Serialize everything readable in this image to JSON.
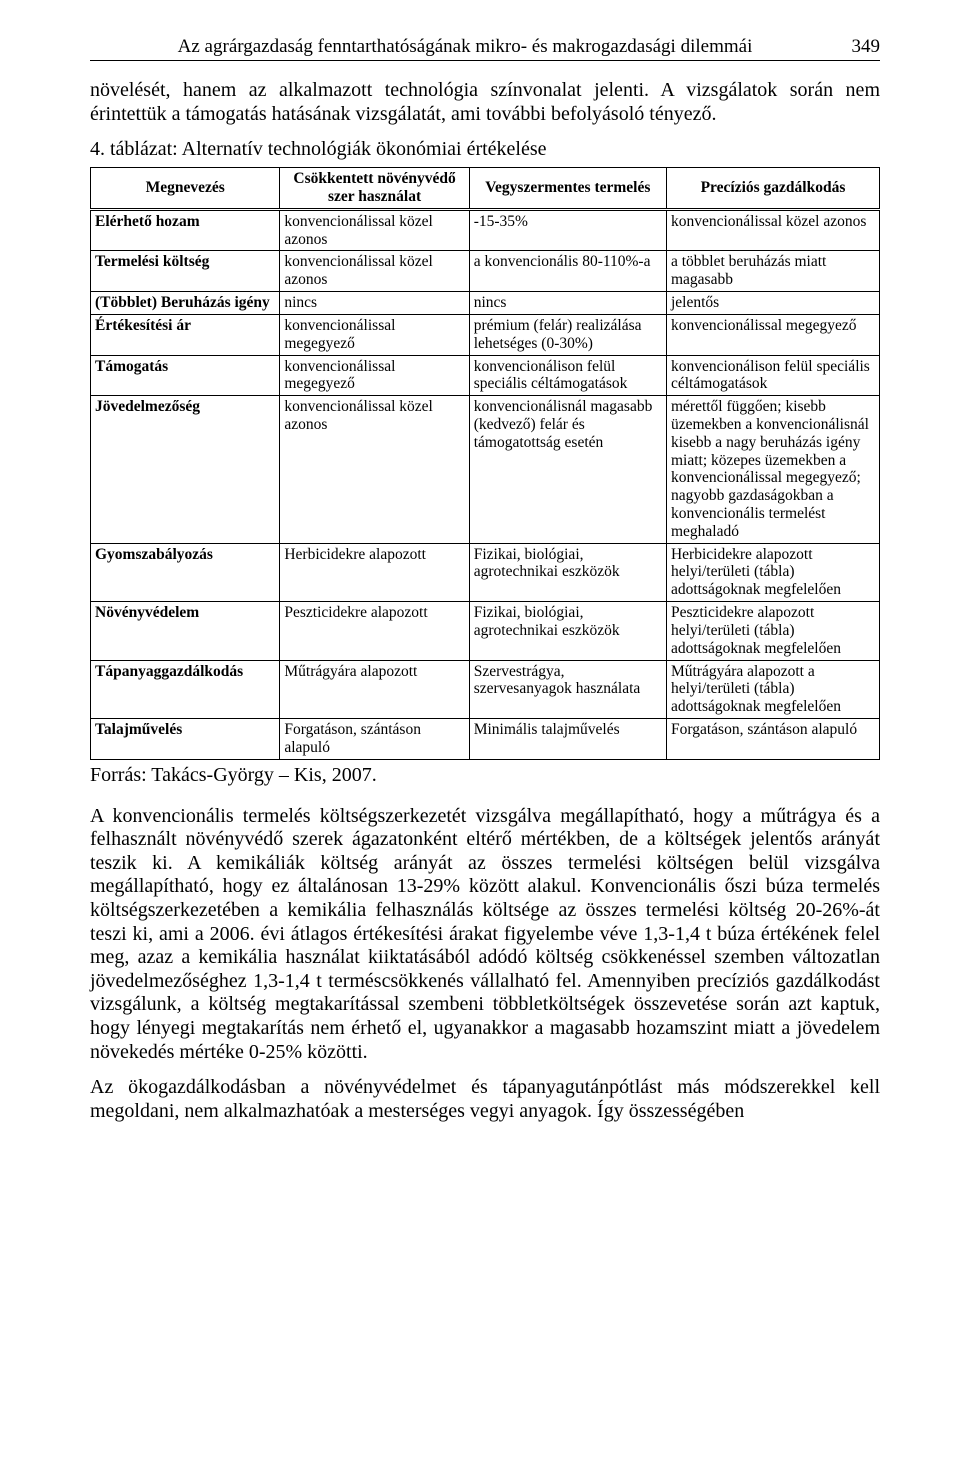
{
  "header": {
    "title": "Az agrárgazdaság fenntarthatóságának mikro- és makrogazdasági dilemmái",
    "page_number": "349"
  },
  "paragraphs": {
    "p1": "növelését, hanem az alkalmazott technológia színvonalat jelenti. A vizsgálatok során nem érintettük a támogatás hatásának vizsgálatát, ami további befolyásoló tényező.",
    "table_caption": "4. táblázat: Alternatív technológiák ökonómiai értékelése",
    "source": "Forrás: Takács-György – Kis, 2007.",
    "p2": "A konvencionális termelés költségszerkezetét vizsgálva megállapítható, hogy a műtrágya és a felhasznált növényvédő szerek ágazatonként eltérő mértékben, de a költségek jelentős arányát teszik ki. A kemikáliák költség arányát az összes termelési költségen belül vizsgálva megállapítható, hogy ez általánosan 13-29% között alakul. Konvencionális őszi búza termelés költségszerkezetében a kemikália felhasználás költsége az összes termelési költség 20-26%-át teszi ki, ami a 2006. évi átlagos értékesítési árakat figyelembe véve 1,3-1,4 t búza értékének felel meg, azaz a kemikália használat kiiktatásából adódó költség csökkenéssel szemben változatlan jövedelmezőséghez 1,3-1,4 t terméscsökkenés vállalható fel. Amennyiben precíziós gazdálkodást vizsgálunk, a költség megtakarítással szembeni többletköltségek összevetése során azt kaptuk, hogy lényegi megtakarítás nem érhető el, ugyanakkor a magasabb hozamszint miatt a jövedelem növekedés mértéke 0-25% közötti.",
    "p3": "Az ökogazdálkodásban a növényvédelmet és tápanyagutánpótlást más módszerekkel kell megoldani, nem alkalmazhatóak a mesterséges vegyi anyagok. Így összességében"
  },
  "table": {
    "headers": [
      "Megnevezés",
      "Csökkentett növényvédő szer használat",
      "Vegyszermentes termelés",
      "Precíziós gazdálkodás"
    ],
    "rows": [
      {
        "c0": "Elérhető hozam",
        "c1": "konvencionálissal közel azonos",
        "c2": "-15-35%",
        "c3": "konvencionálissal közel azonos"
      },
      {
        "c0": "Termelési költség",
        "c1": "konvencionálissal közel azonos",
        "c2": "a konvencionális 80-110%-a",
        "c3": "a többlet beruházás miatt magasabb"
      },
      {
        "c0": "(Többlet) Beruházás igény",
        "c1": "nincs",
        "c2": "nincs",
        "c3": "jelentős"
      },
      {
        "c0": "Értékesítési ár",
        "c1": "konvencionálissal megegyező",
        "c2": "prémium (felár) realizálása lehetséges (0-30%)",
        "c3": "konvencionálissal megegyező"
      },
      {
        "c0": "Támogatás",
        "c1": "konvencionálissal megegyező",
        "c2": "konvencionálison felül speciális céltámogatások",
        "c3": "konvencionálison felül speciális céltámogatások"
      },
      {
        "c0": "Jövedelmezőség",
        "c1": "konvencionálissal közel azonos",
        "c2": "konvencionálisnál magasabb (kedvező) felár és támogatottság esetén",
        "c3": "mérettől függően; kisebb üzemekben a konvencionálisnál kisebb a nagy beruházás igény miatt; közepes üzemekben a konvencionálissal megegyező; nagyobb gazdaságokban a konvencionális termelést meghaladó"
      },
      {
        "c0": "Gyomszabályozás",
        "c1": "Herbicidekre alapozott",
        "c2": "Fizikai, biológiai, agrotechnikai eszközök",
        "c3": "Herbicidekre alapozott helyi/területi (tábla) adottságoknak megfelelően"
      },
      {
        "c0": "Növényvédelem",
        "c1": "Peszticidekre alapozott",
        "c2": "Fizikai, biológiai, agrotechnikai eszközök",
        "c3": "Peszticidekre alapozott helyi/területi (tábla) adottságoknak megfelelően"
      },
      {
        "c0": "Tápanyaggazdálkodás",
        "c1": "Műtrágyára alapozott",
        "c2": "Szervestrágya, szervesanyagok használata",
        "c3": "Műtrágyára alapozott a helyi/területi (tábla) adottságoknak megfelelően"
      },
      {
        "c0": "Talajművelés",
        "c1": "Forgatáson, szántáson alapuló",
        "c2": "Minimális talajművelés",
        "c3": "Forgatáson, szántáson alapuló"
      }
    ]
  }
}
